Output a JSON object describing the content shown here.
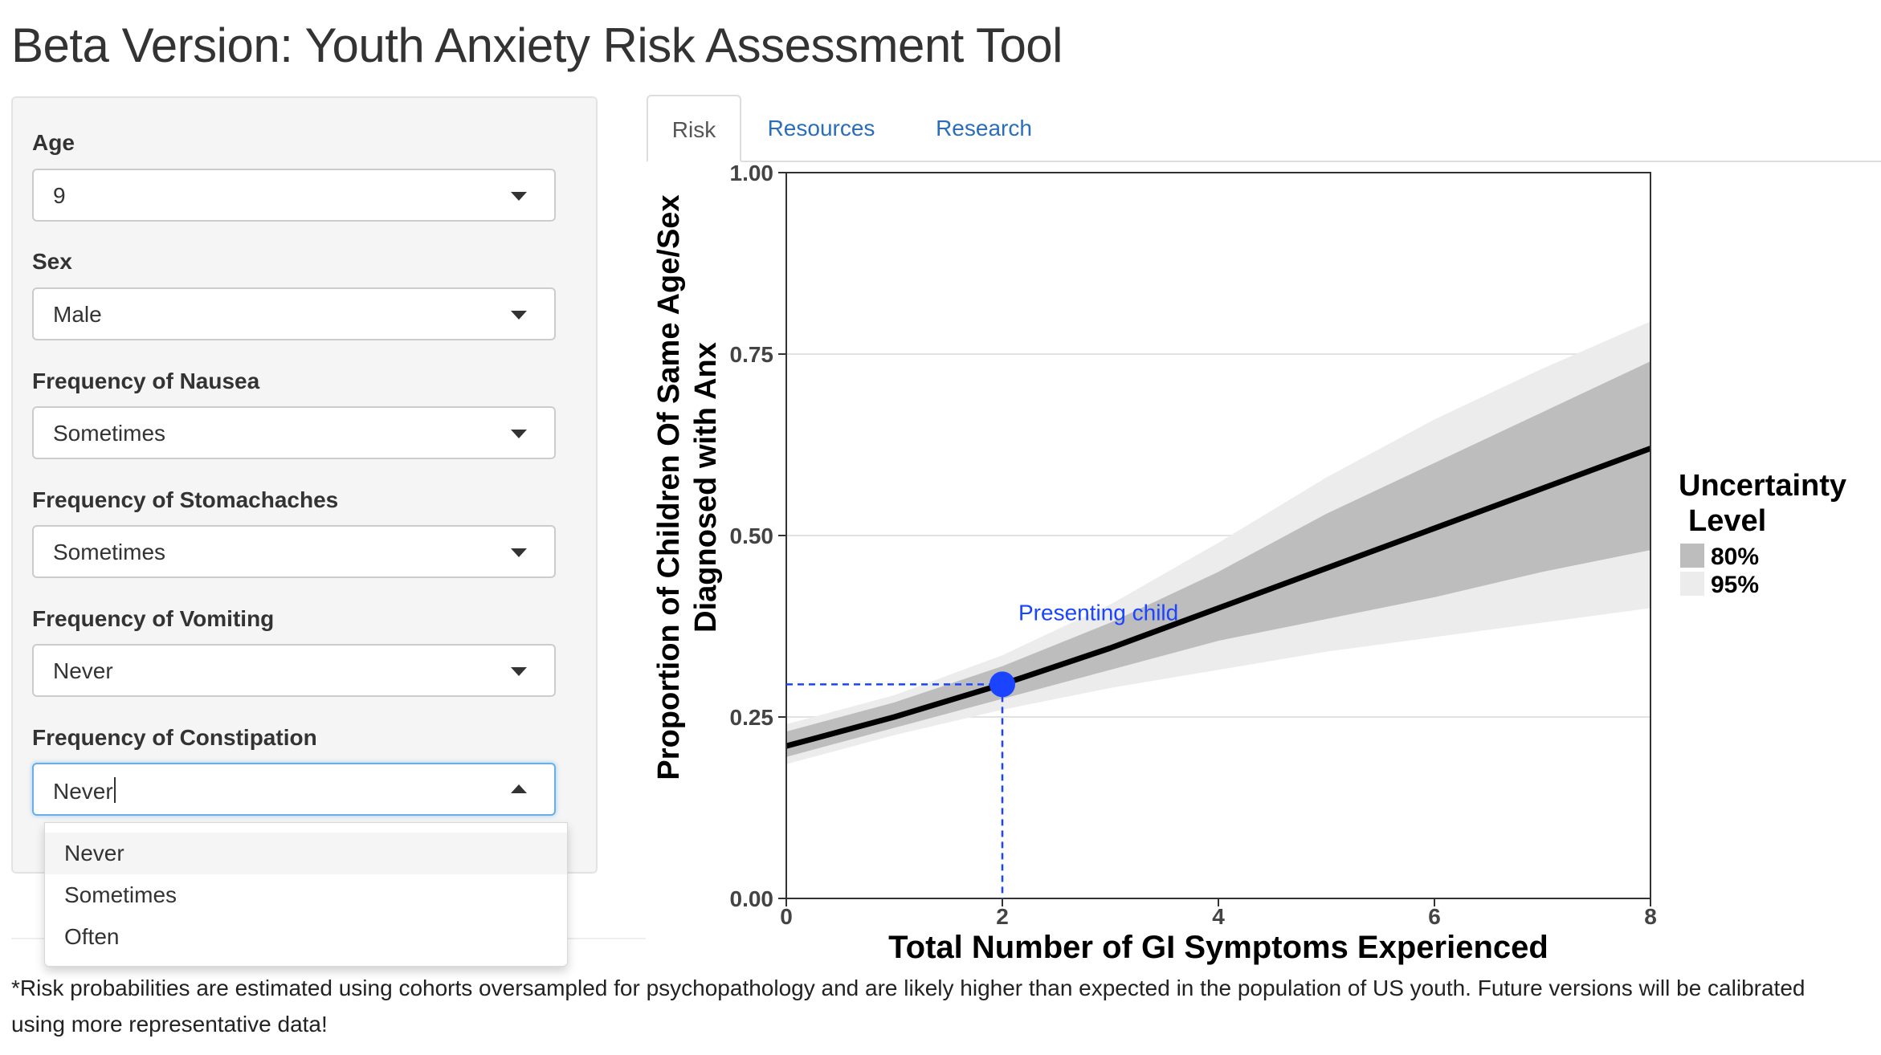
{
  "app": {
    "title": "Beta Version: Youth Anxiety Risk Assessment Tool"
  },
  "sidebar": {
    "fields": [
      {
        "label": "Age",
        "value": "9"
      },
      {
        "label": "Sex",
        "value": "Male"
      },
      {
        "label": "Frequency of Nausea",
        "value": "Sometimes"
      },
      {
        "label": "Frequency of Stomachaches",
        "value": "Sometimes"
      },
      {
        "label": "Frequency of Vomiting",
        "value": "Never"
      },
      {
        "label": "Frequency of Constipation",
        "value": "Never"
      }
    ],
    "dropdown_options": [
      "Never",
      "Sometimes",
      "Often"
    ]
  },
  "tabs": [
    {
      "label": "Risk",
      "active": true
    },
    {
      "label": "Resources",
      "active": false
    },
    {
      "label": "Research",
      "active": false
    }
  ],
  "colors": {
    "link": "#2a6ebb",
    "band_80": "#bdbdbd",
    "band_95": "#ececec",
    "curve": "#000000",
    "marker": "#1a44ff"
  },
  "chart_data": {
    "type": "line",
    "title": "",
    "xlabel": "Total Number of GI Symptoms Experienced",
    "ylabel_lines": [
      "Proportion of Children Of Same Age/Sex",
      "Diagnosed with Anx"
    ],
    "xlim": [
      0,
      8
    ],
    "ylim": [
      0,
      1
    ],
    "x_ticks": [
      0,
      2,
      4,
      6,
      8
    ],
    "y_ticks": [
      0,
      0.25,
      0.5,
      0.75,
      1
    ],
    "y_tick_labels": [
      "0.00",
      "0.25",
      "0.50",
      "0.75",
      "1.00"
    ],
    "grid": true,
    "x": [
      0,
      1,
      2,
      3,
      4,
      5,
      6,
      7,
      8
    ],
    "estimate": [
      0.21,
      0.25,
      0.295,
      0.345,
      0.4,
      0.455,
      0.51,
      0.565,
      0.62
    ],
    "band_80": {
      "lower": [
        0.195,
        0.235,
        0.275,
        0.315,
        0.355,
        0.385,
        0.415,
        0.45,
        0.48
      ],
      "upper": [
        0.23,
        0.27,
        0.32,
        0.38,
        0.45,
        0.53,
        0.6,
        0.67,
        0.74
      ]
    },
    "band_95": {
      "lower": [
        0.185,
        0.225,
        0.26,
        0.29,
        0.315,
        0.34,
        0.36,
        0.38,
        0.4
      ],
      "upper": [
        0.24,
        0.28,
        0.335,
        0.405,
        0.49,
        0.58,
        0.66,
        0.73,
        0.795
      ]
    },
    "point": {
      "x": 2,
      "y": 0.295,
      "label": "Presenting child"
    },
    "legend": {
      "title_lines": [
        "Uncertainty",
        "Level"
      ],
      "items": [
        {
          "label": "80%",
          "color": "#bdbdbd"
        },
        {
          "label": "95%",
          "color": "#ececec"
        }
      ],
      "placement": "right"
    }
  },
  "footer": {
    "note": "*Risk probabilities are estimated using cohorts oversampled for psychopathology and are likely higher than expected in the population of US youth. Future versions will be calibrated using more representative data!"
  }
}
